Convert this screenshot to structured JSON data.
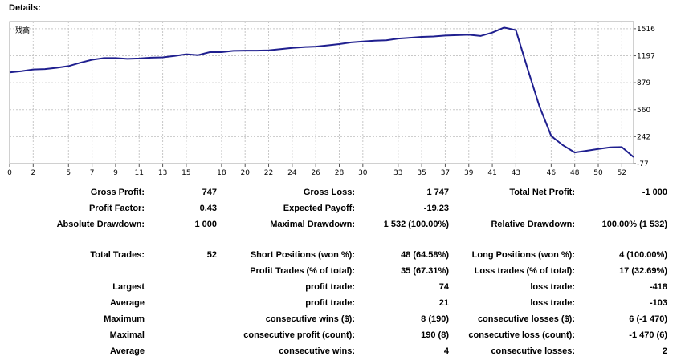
{
  "heading": "Details:",
  "chart_data": {
    "type": "line",
    "legend_label": "残高",
    "x_ticks": [
      0,
      2,
      5,
      7,
      9,
      11,
      13,
      15,
      18,
      20,
      22,
      24,
      26,
      28,
      30,
      33,
      35,
      37,
      39,
      41,
      43,
      46,
      48,
      50,
      52
    ],
    "y_ticks": [
      1516,
      1197,
      879,
      560,
      242,
      -77
    ],
    "ylim": [
      -77,
      1600
    ],
    "xlim": [
      0,
      53
    ],
    "line_color": "#1f1f8f",
    "x": [
      0,
      1,
      2,
      3,
      4,
      5,
      6,
      7,
      8,
      9,
      10,
      11,
      12,
      13,
      14,
      15,
      16,
      17,
      18,
      19,
      20,
      21,
      22,
      23,
      24,
      25,
      26,
      27,
      28,
      29,
      30,
      31,
      32,
      33,
      34,
      35,
      36,
      37,
      38,
      39,
      40,
      41,
      42,
      43,
      44,
      45,
      46,
      47,
      48,
      49,
      50,
      51,
      52,
      53
    ],
    "y": [
      1000,
      1015,
      1035,
      1040,
      1055,
      1075,
      1115,
      1150,
      1170,
      1170,
      1160,
      1165,
      1175,
      1178,
      1195,
      1215,
      1205,
      1240,
      1240,
      1255,
      1258,
      1258,
      1262,
      1275,
      1290,
      1300,
      1305,
      1320,
      1335,
      1355,
      1365,
      1375,
      1380,
      1400,
      1410,
      1420,
      1425,
      1435,
      1440,
      1445,
      1430,
      1470,
      1530,
      1500,
      1040,
      600,
      250,
      140,
      55,
      75,
      95,
      115,
      118,
      0
    ]
  },
  "stats": {
    "r1": [
      {
        "label": "Gross Profit:",
        "value": "747"
      },
      {
        "label": "Gross Loss:",
        "value": "1 747"
      },
      {
        "label": "Total Net Profit:",
        "value": "-1 000"
      }
    ],
    "r2": [
      {
        "label": "Profit Factor:",
        "value": "0.43"
      },
      {
        "label": "Expected Payoff:",
        "value": "-19.23"
      }
    ],
    "r3": [
      {
        "label": "Absolute Drawdown:",
        "value": "1 000"
      },
      {
        "label": "Maximal Drawdown:",
        "value": "1 532 (100.00%)"
      },
      {
        "label": "Relative Drawdown:",
        "value": "100.00% (1 532)"
      }
    ],
    "r4": [
      {
        "label": "Total Trades:",
        "value": "52"
      },
      {
        "label": "Short Positions (won %):",
        "value": "48 (64.58%)"
      },
      {
        "label": "Long Positions (won %):",
        "value": "4 (100.00%)"
      }
    ],
    "r5": [
      {
        "label": "Profit Trades (% of total):",
        "value": "35 (67.31%)"
      },
      {
        "label": "Loss trades (% of total):",
        "value": "17 (32.69%)"
      }
    ],
    "r6": {
      "group": "Largest",
      "items": [
        {
          "label": "profit trade:",
          "value": "74"
        },
        {
          "label": "loss trade:",
          "value": "-418"
        }
      ]
    },
    "r7": {
      "group": "Average",
      "items": [
        {
          "label": "profit trade:",
          "value": "21"
        },
        {
          "label": "loss trade:",
          "value": "-103"
        }
      ]
    },
    "r8": {
      "group": "Maximum",
      "items": [
        {
          "label": "consecutive wins ($):",
          "value": "8 (190)"
        },
        {
          "label": "consecutive losses ($):",
          "value": "6 (-1 470)"
        }
      ]
    },
    "r9": {
      "group": "Maximal",
      "items": [
        {
          "label": "consecutive profit (count):",
          "value": "190 (8)"
        },
        {
          "label": "consecutive loss (count):",
          "value": "-1 470 (6)"
        }
      ]
    },
    "r10": {
      "group": "Average",
      "items": [
        {
          "label": "consecutive wins:",
          "value": "4"
        },
        {
          "label": "consecutive losses:",
          "value": "2"
        }
      ]
    }
  }
}
